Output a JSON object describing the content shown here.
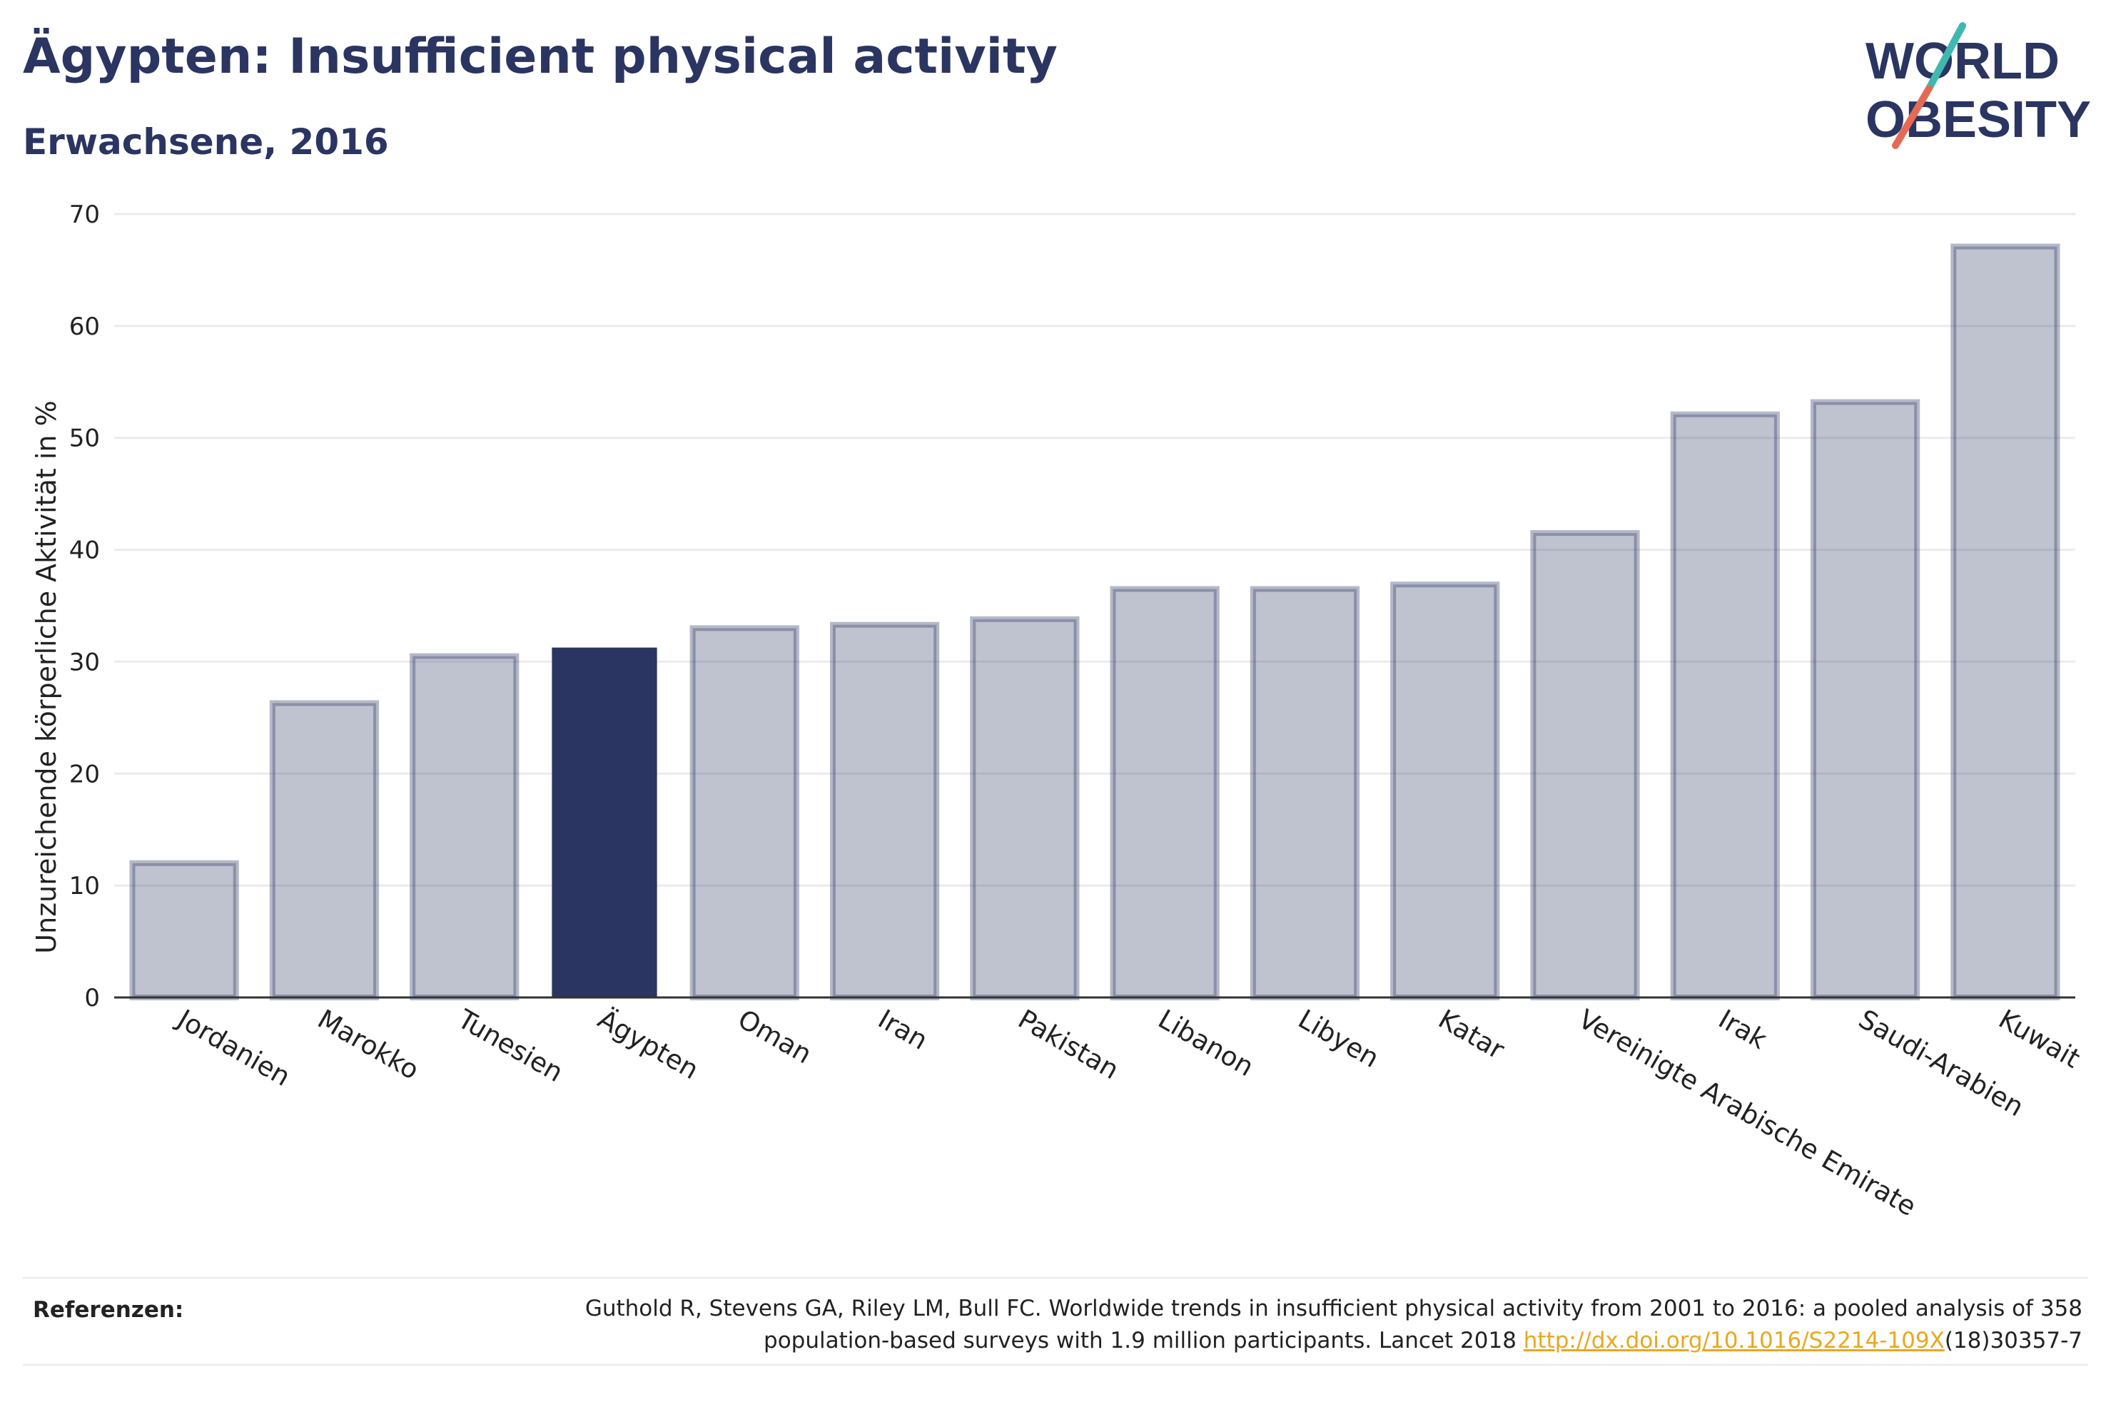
{
  "header": {
    "title": "Ägypten: Insufficient physical activity",
    "subtitle": "Erwachsene, 2016"
  },
  "logo": {
    "line1": "WORLD",
    "line2": "OBESITY",
    "colors": {
      "text": "#2a3561",
      "slash_teal": "#3fb8b0",
      "slash_red": "#e56a55"
    }
  },
  "chart_data": {
    "type": "bar",
    "ylabel": "Unzureichende körperliche Aktivität in %",
    "ylim": [
      0,
      70
    ],
    "yticks": [
      0,
      10,
      20,
      30,
      40,
      50,
      60,
      70
    ],
    "grid": true,
    "categories": [
      "Jordanien",
      "Marokko",
      "Tunesien",
      "Ägypten",
      "Oman",
      "Iran",
      "Pakistan",
      "Libanon",
      "Libyen",
      "Katar",
      "Vereinigte Arabische Emirate",
      "Irak",
      "Saudi-Arabien",
      "Kuwait"
    ],
    "values": [
      12.0,
      26.3,
      30.5,
      31.2,
      33.0,
      33.3,
      33.8,
      36.5,
      36.5,
      36.9,
      41.5,
      52.1,
      53.2,
      67.1
    ],
    "highlight": "Ägypten",
    "colors": {
      "bar": "#2a3561",
      "highlight": "#2a3561",
      "grid": "#ebebef",
      "axis": "#333333"
    }
  },
  "references": {
    "label": "Referenzen:",
    "text_line1": "Guthold R, Stevens GA, Riley LM, Bull FC. Worldwide trends in insufficient physical activity from 2001 to 2016: a pooled analysis of 358",
    "text_line2_start": "population-based surveys with 1.9 million participants. Lancet 2018 ",
    "link": "http://dx.doi.org/10.1016/S2214-109X",
    "text_line2_end": "(18)30357-7"
  }
}
